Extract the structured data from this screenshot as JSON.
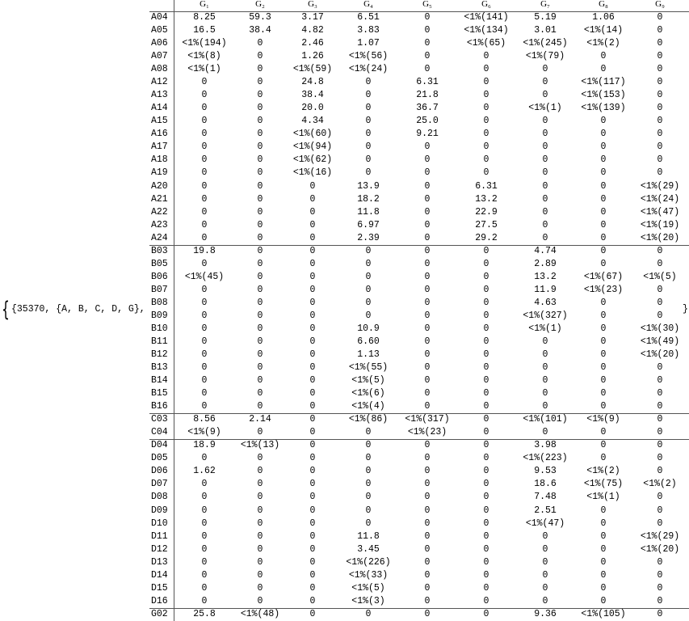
{
  "prefix": "{35370, {A, B, C, D, G},",
  "suffix": "}",
  "table": {
    "header": [
      "G₁",
      "G₂",
      "G₃",
      "G₄",
      "G₅",
      "G₆",
      "G₇",
      "G₈",
      "G₉"
    ],
    "groups": [
      {
        "rows": [
          {
            "label": "A04",
            "cells": [
              "8.25",
              "59.3",
              "3.17",
              "6.51",
              "0",
              "<1%(141)",
              "5.19",
              "1.06",
              "0"
            ]
          },
          {
            "label": "A05",
            "cells": [
              "16.5",
              "38.4",
              "4.82",
              "3.83",
              "0",
              "<1%(134)",
              "3.01",
              "<1%(14)",
              "0"
            ]
          },
          {
            "label": "A06",
            "cells": [
              "<1%(194)",
              "0",
              "2.46",
              "1.07",
              "0",
              "<1%(65)",
              "<1%(245)",
              "<1%(2)",
              "0"
            ]
          },
          {
            "label": "A07",
            "cells": [
              "<1%(8)",
              "0",
              "1.26",
              "<1%(56)",
              "0",
              "0",
              "<1%(79)",
              "0",
              "0"
            ]
          },
          {
            "label": "A08",
            "cells": [
              "<1%(1)",
              "0",
              "<1%(59)",
              "<1%(24)",
              "0",
              "0",
              "0",
              "0",
              "0"
            ]
          },
          {
            "label": "A12",
            "cells": [
              "0",
              "0",
              "24.8",
              "0",
              "6.31",
              "0",
              "0",
              "<1%(117)",
              "0"
            ]
          },
          {
            "label": "A13",
            "cells": [
              "0",
              "0",
              "38.4",
              "0",
              "21.8",
              "0",
              "0",
              "<1%(153)",
              "0"
            ]
          },
          {
            "label": "A14",
            "cells": [
              "0",
              "0",
              "20.0",
              "0",
              "36.7",
              "0",
              "<1%(1)",
              "<1%(139)",
              "0"
            ]
          },
          {
            "label": "A15",
            "cells": [
              "0",
              "0",
              "4.34",
              "0",
              "25.0",
              "0",
              "0",
              "0",
              "0"
            ]
          },
          {
            "label": "A16",
            "cells": [
              "0",
              "0",
              "<1%(60)",
              "0",
              "9.21",
              "0",
              "0",
              "0",
              "0"
            ]
          },
          {
            "label": "A17",
            "cells": [
              "0",
              "0",
              "<1%(94)",
              "0",
              "0",
              "0",
              "0",
              "0",
              "0"
            ]
          },
          {
            "label": "A18",
            "cells": [
              "0",
              "0",
              "<1%(62)",
              "0",
              "0",
              "0",
              "0",
              "0",
              "0"
            ]
          },
          {
            "label": "A19",
            "cells": [
              "0",
              "0",
              "<1%(16)",
              "0",
              "0",
              "0",
              "0",
              "0",
              "0"
            ]
          },
          {
            "label": "A20",
            "cells": [
              "0",
              "0",
              "0",
              "13.9",
              "0",
              "6.31",
              "0",
              "0",
              "<1%(29)"
            ]
          },
          {
            "label": "A21",
            "cells": [
              "0",
              "0",
              "0",
              "18.2",
              "0",
              "13.2",
              "0",
              "0",
              "<1%(24)"
            ]
          },
          {
            "label": "A22",
            "cells": [
              "0",
              "0",
              "0",
              "11.8",
              "0",
              "22.9",
              "0",
              "0",
              "<1%(47)"
            ]
          },
          {
            "label": "A23",
            "cells": [
              "0",
              "0",
              "0",
              "6.97",
              "0",
              "27.5",
              "0",
              "0",
              "<1%(19)"
            ]
          },
          {
            "label": "A24",
            "cells": [
              "0",
              "0",
              "0",
              "2.39",
              "0",
              "29.2",
              "0",
              "0",
              "<1%(20)"
            ]
          }
        ]
      },
      {
        "rows": [
          {
            "label": "B03",
            "cells": [
              "19.8",
              "0",
              "0",
              "0",
              "0",
              "0",
              "4.74",
              "0",
              "0"
            ]
          },
          {
            "label": "B05",
            "cells": [
              "0",
              "0",
              "0",
              "0",
              "0",
              "0",
              "2.89",
              "0",
              "0"
            ]
          },
          {
            "label": "B06",
            "cells": [
              "<1%(45)",
              "0",
              "0",
              "0",
              "0",
              "0",
              "13.2",
              "<1%(67)",
              "<1%(5)"
            ]
          },
          {
            "label": "B07",
            "cells": [
              "0",
              "0",
              "0",
              "0",
              "0",
              "0",
              "11.9",
              "<1%(23)",
              "0"
            ]
          },
          {
            "label": "B08",
            "cells": [
              "0",
              "0",
              "0",
              "0",
              "0",
              "0",
              "4.63",
              "0",
              "0"
            ]
          },
          {
            "label": "B09",
            "cells": [
              "0",
              "0",
              "0",
              "0",
              "0",
              "0",
              "<1%(327)",
              "0",
              "0"
            ]
          },
          {
            "label": "B10",
            "cells": [
              "0",
              "0",
              "0",
              "10.9",
              "0",
              "0",
              "<1%(1)",
              "0",
              "<1%(30)"
            ]
          },
          {
            "label": "B11",
            "cells": [
              "0",
              "0",
              "0",
              "6.60",
              "0",
              "0",
              "0",
              "0",
              "<1%(49)"
            ]
          },
          {
            "label": "B12",
            "cells": [
              "0",
              "0",
              "0",
              "1.13",
              "0",
              "0",
              "0",
              "0",
              "<1%(20)"
            ]
          },
          {
            "label": "B13",
            "cells": [
              "0",
              "0",
              "0",
              "<1%(55)",
              "0",
              "0",
              "0",
              "0",
              "0"
            ]
          },
          {
            "label": "B14",
            "cells": [
              "0",
              "0",
              "0",
              "<1%(5)",
              "0",
              "0",
              "0",
              "0",
              "0"
            ]
          },
          {
            "label": "B15",
            "cells": [
              "0",
              "0",
              "0",
              "<1%(6)",
              "0",
              "0",
              "0",
              "0",
              "0"
            ]
          },
          {
            "label": "B16",
            "cells": [
              "0",
              "0",
              "0",
              "<1%(4)",
              "0",
              "0",
              "0",
              "0",
              "0"
            ]
          }
        ]
      },
      {
        "rows": [
          {
            "label": "C03",
            "cells": [
              "8.56",
              "2.14",
              "0",
              "<1%(86)",
              "<1%(317)",
              "0",
              "<1%(101)",
              "<1%(9)",
              "0"
            ]
          },
          {
            "label": "C04",
            "cells": [
              "<1%(9)",
              "0",
              "0",
              "0",
              "<1%(23)",
              "0",
              "0",
              "0",
              "0"
            ]
          }
        ]
      },
      {
        "rows": [
          {
            "label": "D04",
            "cells": [
              "18.9",
              "<1%(13)",
              "0",
              "0",
              "0",
              "0",
              "3.98",
              "0",
              "0"
            ]
          },
          {
            "label": "D05",
            "cells": [
              "0",
              "0",
              "0",
              "0",
              "0",
              "0",
              "<1%(223)",
              "0",
              "0"
            ]
          },
          {
            "label": "D06",
            "cells": [
              "1.62",
              "0",
              "0",
              "0",
              "0",
              "0",
              "9.53",
              "<1%(2)",
              "0"
            ]
          },
          {
            "label": "D07",
            "cells": [
              "0",
              "0",
              "0",
              "0",
              "0",
              "0",
              "18.6",
              "<1%(75)",
              "<1%(2)"
            ]
          },
          {
            "label": "D08",
            "cells": [
              "0",
              "0",
              "0",
              "0",
              "0",
              "0",
              "7.48",
              "<1%(1)",
              "0"
            ]
          },
          {
            "label": "D09",
            "cells": [
              "0",
              "0",
              "0",
              "0",
              "0",
              "0",
              "2.51",
              "0",
              "0"
            ]
          },
          {
            "label": "D10",
            "cells": [
              "0",
              "0",
              "0",
              "0",
              "0",
              "0",
              "<1%(47)",
              "0",
              "0"
            ]
          },
          {
            "label": "D11",
            "cells": [
              "0",
              "0",
              "0",
              "11.8",
              "0",
              "0",
              "0",
              "0",
              "<1%(29)"
            ]
          },
          {
            "label": "D12",
            "cells": [
              "0",
              "0",
              "0",
              "3.45",
              "0",
              "0",
              "0",
              "0",
              "<1%(20)"
            ]
          },
          {
            "label": "D13",
            "cells": [
              "0",
              "0",
              "0",
              "<1%(226)",
              "0",
              "0",
              "0",
              "0",
              "0"
            ]
          },
          {
            "label": "D14",
            "cells": [
              "0",
              "0",
              "0",
              "<1%(33)",
              "0",
              "0",
              "0",
              "0",
              "0"
            ]
          },
          {
            "label": "D15",
            "cells": [
              "0",
              "0",
              "0",
              "<1%(5)",
              "0",
              "0",
              "0",
              "0",
              "0"
            ]
          },
          {
            "label": "D16",
            "cells": [
              "0",
              "0",
              "0",
              "<1%(3)",
              "0",
              "0",
              "0",
              "0",
              "0"
            ]
          }
        ]
      },
      {
        "rows": [
          {
            "label": "G02",
            "cells": [
              "25.8",
              "<1%(48)",
              "0",
              "0",
              "0",
              "0",
              "9.36",
              "<1%(105)",
              "0"
            ]
          }
        ]
      }
    ]
  }
}
